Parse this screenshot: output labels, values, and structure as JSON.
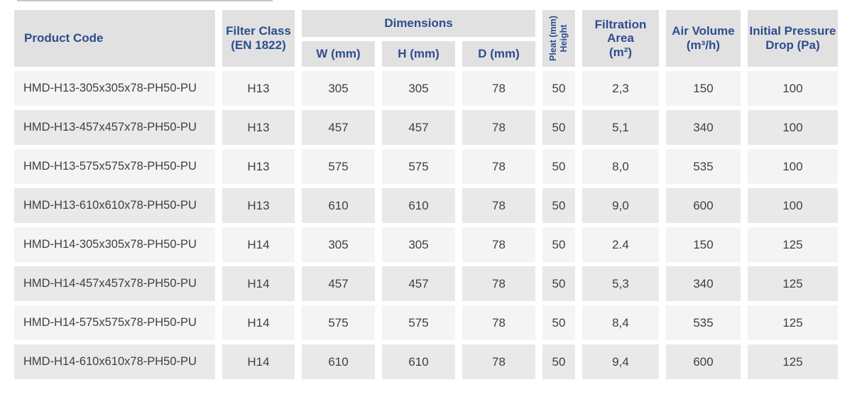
{
  "colors": {
    "header_text_blue": "#2d4d8f",
    "header_bg": "#e1e1e1",
    "row_odd_bg": "#f4f4f4",
    "row_even_bg": "#e9e9e9",
    "body_text": "#3f3f3f",
    "page_bg": "#ffffff"
  },
  "table": {
    "header": {
      "product_code": "Product Code",
      "filter_class_l1": "Filter Class",
      "filter_class_l2": "(EN 1822)",
      "dimensions": "Dimensions",
      "w": "W (mm)",
      "h": "H (mm)",
      "d": "D (mm)",
      "pleat_l1": "Pleat (mm)",
      "pleat_l2": "Height",
      "filtration_l1": "Filtration",
      "filtration_l2": "Area",
      "filtration_l3": "(m²)",
      "air_l1": "Air Volume",
      "air_l2": "(m³/h)",
      "pressure_l1": "Initial Pressure",
      "pressure_l2": "Drop (Pa)"
    },
    "rows": [
      {
        "code": "HMD-H13-305x305x78-PH50-PU",
        "filter_class": "H13",
        "w": "305",
        "h": "305",
        "d": "78",
        "pleat_height": "50",
        "filtration_area": "2,3",
        "air_volume": "150",
        "pressure_drop": "100"
      },
      {
        "code": "HMD-H13-457x457x78-PH50-PU",
        "filter_class": "H13",
        "w": "457",
        "h": "457",
        "d": "78",
        "pleat_height": "50",
        "filtration_area": "5,1",
        "air_volume": "340",
        "pressure_drop": "100"
      },
      {
        "code": "HMD-H13-575x575x78-PH50-PU",
        "filter_class": "H13",
        "w": "575",
        "h": "575",
        "d": "78",
        "pleat_height": "50",
        "filtration_area": "8,0",
        "air_volume": "535",
        "pressure_drop": "100"
      },
      {
        "code": "HMD-H13-610x610x78-PH50-PU",
        "filter_class": "H13",
        "w": "610",
        "h": "610",
        "d": "78",
        "pleat_height": "50",
        "filtration_area": "9,0",
        "air_volume": "600",
        "pressure_drop": "100"
      },
      {
        "code": "HMD-H14-305x305x78-PH50-PU",
        "filter_class": "H14",
        "w": "305",
        "h": "305",
        "d": "78",
        "pleat_height": "50",
        "filtration_area": "2.4",
        "air_volume": "150",
        "pressure_drop": "125"
      },
      {
        "code": "HMD-H14-457x457x78-PH50-PU",
        "filter_class": "H14",
        "w": "457",
        "h": "457",
        "d": "78",
        "pleat_height": "50",
        "filtration_area": "5,3",
        "air_volume": "340",
        "pressure_drop": "125"
      },
      {
        "code": "HMD-H14-575x575x78-PH50-PU",
        "filter_class": "H14",
        "w": "575",
        "h": "575",
        "d": "78",
        "pleat_height": "50",
        "filtration_area": "8,4",
        "air_volume": "535",
        "pressure_drop": "125"
      },
      {
        "code": "HMD-H14-610x610x78-PH50-PU",
        "filter_class": "H14",
        "w": "610",
        "h": "610",
        "d": "78",
        "pleat_height": "50",
        "filtration_area": "9,4",
        "air_volume": "600",
        "pressure_drop": "125"
      }
    ]
  }
}
